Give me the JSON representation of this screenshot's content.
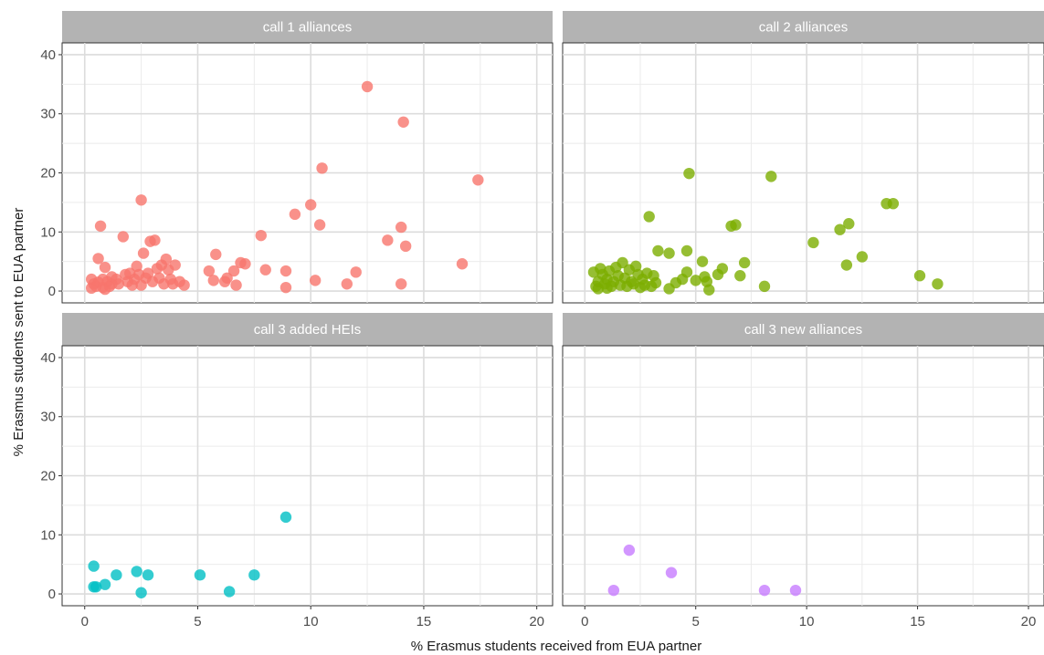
{
  "chart_data": {
    "type": "scatter",
    "title": "",
    "xlabel": "% Erasmus students received from EUA partner",
    "ylabel": "% Erasmus students sent to EUA partner",
    "xlim": [
      -1.0,
      20.7
    ],
    "ylim": [
      -2,
      42
    ],
    "x_ticks": [
      0,
      5,
      10,
      15,
      20
    ],
    "y_ticks": [
      0,
      10,
      20,
      30,
      40
    ],
    "grid": true,
    "legend": "none",
    "panels": [
      {
        "label": "call 1 alliances",
        "color": "#F8766D",
        "points": [
          [
            0.3,
            0.5
          ],
          [
            0.3,
            2.0
          ],
          [
            0.4,
            1.2
          ],
          [
            0.5,
            0.8
          ],
          [
            0.6,
            1.5
          ],
          [
            0.6,
            5.5
          ],
          [
            0.7,
            11.0
          ],
          [
            0.8,
            0.6
          ],
          [
            0.8,
            2.0
          ],
          [
            0.9,
            4.0
          ],
          [
            0.9,
            0.3
          ],
          [
            1.0,
            1.6
          ],
          [
            1.1,
            0.8
          ],
          [
            1.2,
            1.2
          ],
          [
            1.2,
            2.4
          ],
          [
            1.4,
            2.0
          ],
          [
            1.5,
            1.2
          ],
          [
            1.7,
            9.2
          ],
          [
            1.8,
            2.8
          ],
          [
            1.9,
            1.6
          ],
          [
            2.0,
            3.0
          ],
          [
            2.1,
            1.0
          ],
          [
            2.2,
            2.0
          ],
          [
            2.3,
            4.2
          ],
          [
            2.4,
            2.8
          ],
          [
            2.5,
            15.4
          ],
          [
            2.5,
            1.0
          ],
          [
            2.6,
            6.4
          ],
          [
            2.7,
            2.2
          ],
          [
            2.8,
            3.0
          ],
          [
            2.9,
            8.4
          ],
          [
            3.0,
            1.6
          ],
          [
            3.1,
            8.6
          ],
          [
            3.2,
            3.8
          ],
          [
            3.3,
            2.2
          ],
          [
            3.4,
            4.4
          ],
          [
            3.5,
            1.2
          ],
          [
            3.6,
            5.4
          ],
          [
            3.7,
            3.6
          ],
          [
            3.8,
            2.0
          ],
          [
            3.9,
            1.2
          ],
          [
            4.0,
            4.4
          ],
          [
            4.2,
            1.6
          ],
          [
            4.4,
            1.0
          ],
          [
            5.5,
            3.4
          ],
          [
            5.7,
            1.8
          ],
          [
            5.8,
            6.2
          ],
          [
            6.2,
            1.6
          ],
          [
            6.3,
            2.2
          ],
          [
            6.6,
            3.4
          ],
          [
            6.7,
            1.0
          ],
          [
            6.9,
            4.8
          ],
          [
            7.1,
            4.6
          ],
          [
            7.8,
            9.4
          ],
          [
            8.0,
            3.6
          ],
          [
            8.9,
            3.4
          ],
          [
            8.9,
            0.6
          ],
          [
            9.3,
            13.0
          ],
          [
            10.0,
            14.6
          ],
          [
            10.2,
            1.8
          ],
          [
            10.4,
            11.2
          ],
          [
            10.5,
            20.8
          ],
          [
            11.6,
            1.2
          ],
          [
            12.0,
            3.2
          ],
          [
            12.5,
            34.6
          ],
          [
            13.4,
            8.6
          ],
          [
            14.0,
            1.2
          ],
          [
            14.0,
            10.8
          ],
          [
            14.1,
            28.6
          ],
          [
            14.2,
            7.6
          ],
          [
            16.7,
            4.6
          ],
          [
            17.4,
            18.8
          ]
        ]
      },
      {
        "label": "call 2 alliances",
        "color": "#7CAE00",
        "points": [
          [
            0.4,
            3.2
          ],
          [
            0.5,
            0.8
          ],
          [
            0.6,
            1.6
          ],
          [
            0.6,
            0.4
          ],
          [
            0.7,
            3.8
          ],
          [
            0.8,
            2.8
          ],
          [
            0.9,
            1.2
          ],
          [
            1.0,
            0.5
          ],
          [
            1.0,
            2.0
          ],
          [
            1.1,
            3.4
          ],
          [
            1.2,
            0.8
          ],
          [
            1.3,
            1.6
          ],
          [
            1.4,
            4.0
          ],
          [
            1.5,
            2.6
          ],
          [
            1.6,
            1.0
          ],
          [
            1.7,
            4.8
          ],
          [
            1.8,
            2.2
          ],
          [
            1.9,
            0.8
          ],
          [
            2.0,
            3.6
          ],
          [
            2.1,
            1.6
          ],
          [
            2.2,
            1.2
          ],
          [
            2.3,
            4.2
          ],
          [
            2.4,
            2.8
          ],
          [
            2.5,
            0.6
          ],
          [
            2.6,
            2.0
          ],
          [
            2.7,
            1.0
          ],
          [
            2.8,
            3.0
          ],
          [
            2.9,
            12.6
          ],
          [
            3.0,
            0.8
          ],
          [
            3.1,
            2.6
          ],
          [
            3.2,
            1.4
          ],
          [
            3.3,
            6.8
          ],
          [
            3.8,
            6.4
          ],
          [
            3.8,
            0.4
          ],
          [
            4.1,
            1.4
          ],
          [
            4.4,
            2.0
          ],
          [
            4.6,
            6.8
          ],
          [
            4.6,
            3.2
          ],
          [
            4.7,
            19.9
          ],
          [
            5.0,
            1.8
          ],
          [
            5.3,
            5.0
          ],
          [
            5.4,
            2.4
          ],
          [
            5.5,
            1.6
          ],
          [
            5.6,
            0.2
          ],
          [
            6.0,
            2.8
          ],
          [
            6.2,
            3.8
          ],
          [
            6.6,
            11.0
          ],
          [
            6.8,
            11.2
          ],
          [
            7.0,
            2.6
          ],
          [
            7.2,
            4.8
          ],
          [
            8.1,
            0.8
          ],
          [
            8.4,
            19.4
          ],
          [
            10.3,
            8.2
          ],
          [
            11.5,
            10.4
          ],
          [
            11.8,
            4.4
          ],
          [
            11.9,
            11.4
          ],
          [
            12.5,
            5.8
          ],
          [
            13.6,
            14.8
          ],
          [
            13.9,
            14.8
          ],
          [
            15.1,
            2.6
          ],
          [
            15.9,
            1.2
          ]
        ]
      },
      {
        "label": "call 3 added HEIs",
        "color": "#00BFC4",
        "points": [
          [
            0.4,
            4.7
          ],
          [
            0.4,
            1.2
          ],
          [
            0.5,
            1.2
          ],
          [
            0.9,
            1.6
          ],
          [
            1.4,
            3.2
          ],
          [
            2.3,
            3.8
          ],
          [
            2.5,
            0.2
          ],
          [
            2.8,
            3.2
          ],
          [
            5.1,
            3.2
          ],
          [
            6.4,
            0.4
          ],
          [
            7.5,
            3.2
          ],
          [
            8.9,
            13.0
          ]
        ]
      },
      {
        "label": "call 3 new alliances",
        "color": "#C77CFF",
        "points": [
          [
            1.3,
            0.6
          ],
          [
            2.0,
            7.4
          ],
          [
            3.9,
            3.6
          ],
          [
            8.1,
            0.6
          ],
          [
            9.5,
            0.6
          ]
        ]
      }
    ]
  }
}
